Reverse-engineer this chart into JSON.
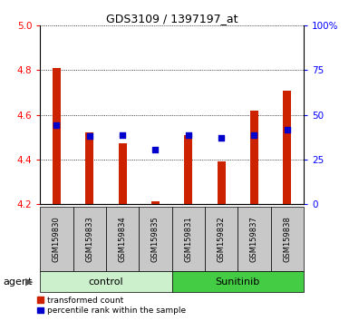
{
  "title": "GDS3109 / 1397197_at",
  "samples": [
    "GSM159830",
    "GSM159833",
    "GSM159834",
    "GSM159835",
    "GSM159831",
    "GSM159832",
    "GSM159837",
    "GSM159838"
  ],
  "red_values": [
    4.81,
    4.52,
    4.47,
    4.21,
    4.51,
    4.39,
    4.62,
    4.71
  ],
  "blue_values": [
    4.555,
    4.505,
    4.51,
    4.445,
    4.51,
    4.495,
    4.51,
    4.535
  ],
  "y_min": 4.2,
  "y_max": 5.0,
  "y_ticks_left": [
    4.2,
    4.4,
    4.6,
    4.8,
    5.0
  ],
  "y_ticks_right_vals": [
    0,
    25,
    50,
    75,
    100
  ],
  "y_ticks_right_labels": [
    "0",
    "25",
    "50",
    "75",
    "100%"
  ],
  "groups": [
    {
      "label": "control",
      "indices": [
        0,
        1,
        2,
        3
      ],
      "color": "#ccf0cc"
    },
    {
      "label": "Sunitinib",
      "indices": [
        4,
        5,
        6,
        7
      ],
      "color": "#44cc44"
    }
  ],
  "agent_label": "agent",
  "bar_color": "#cc2200",
  "dot_color": "#0000cc",
  "bar_bottom": 4.2,
  "bar_width": 0.25,
  "dot_size": 15,
  "sample_box_color": "#c8c8c8",
  "title_fontsize": 9,
  "tick_fontsize": 7.5,
  "sample_fontsize": 6,
  "group_fontsize": 8,
  "legend_fontsize": 6.5,
  "agent_fontsize": 8
}
